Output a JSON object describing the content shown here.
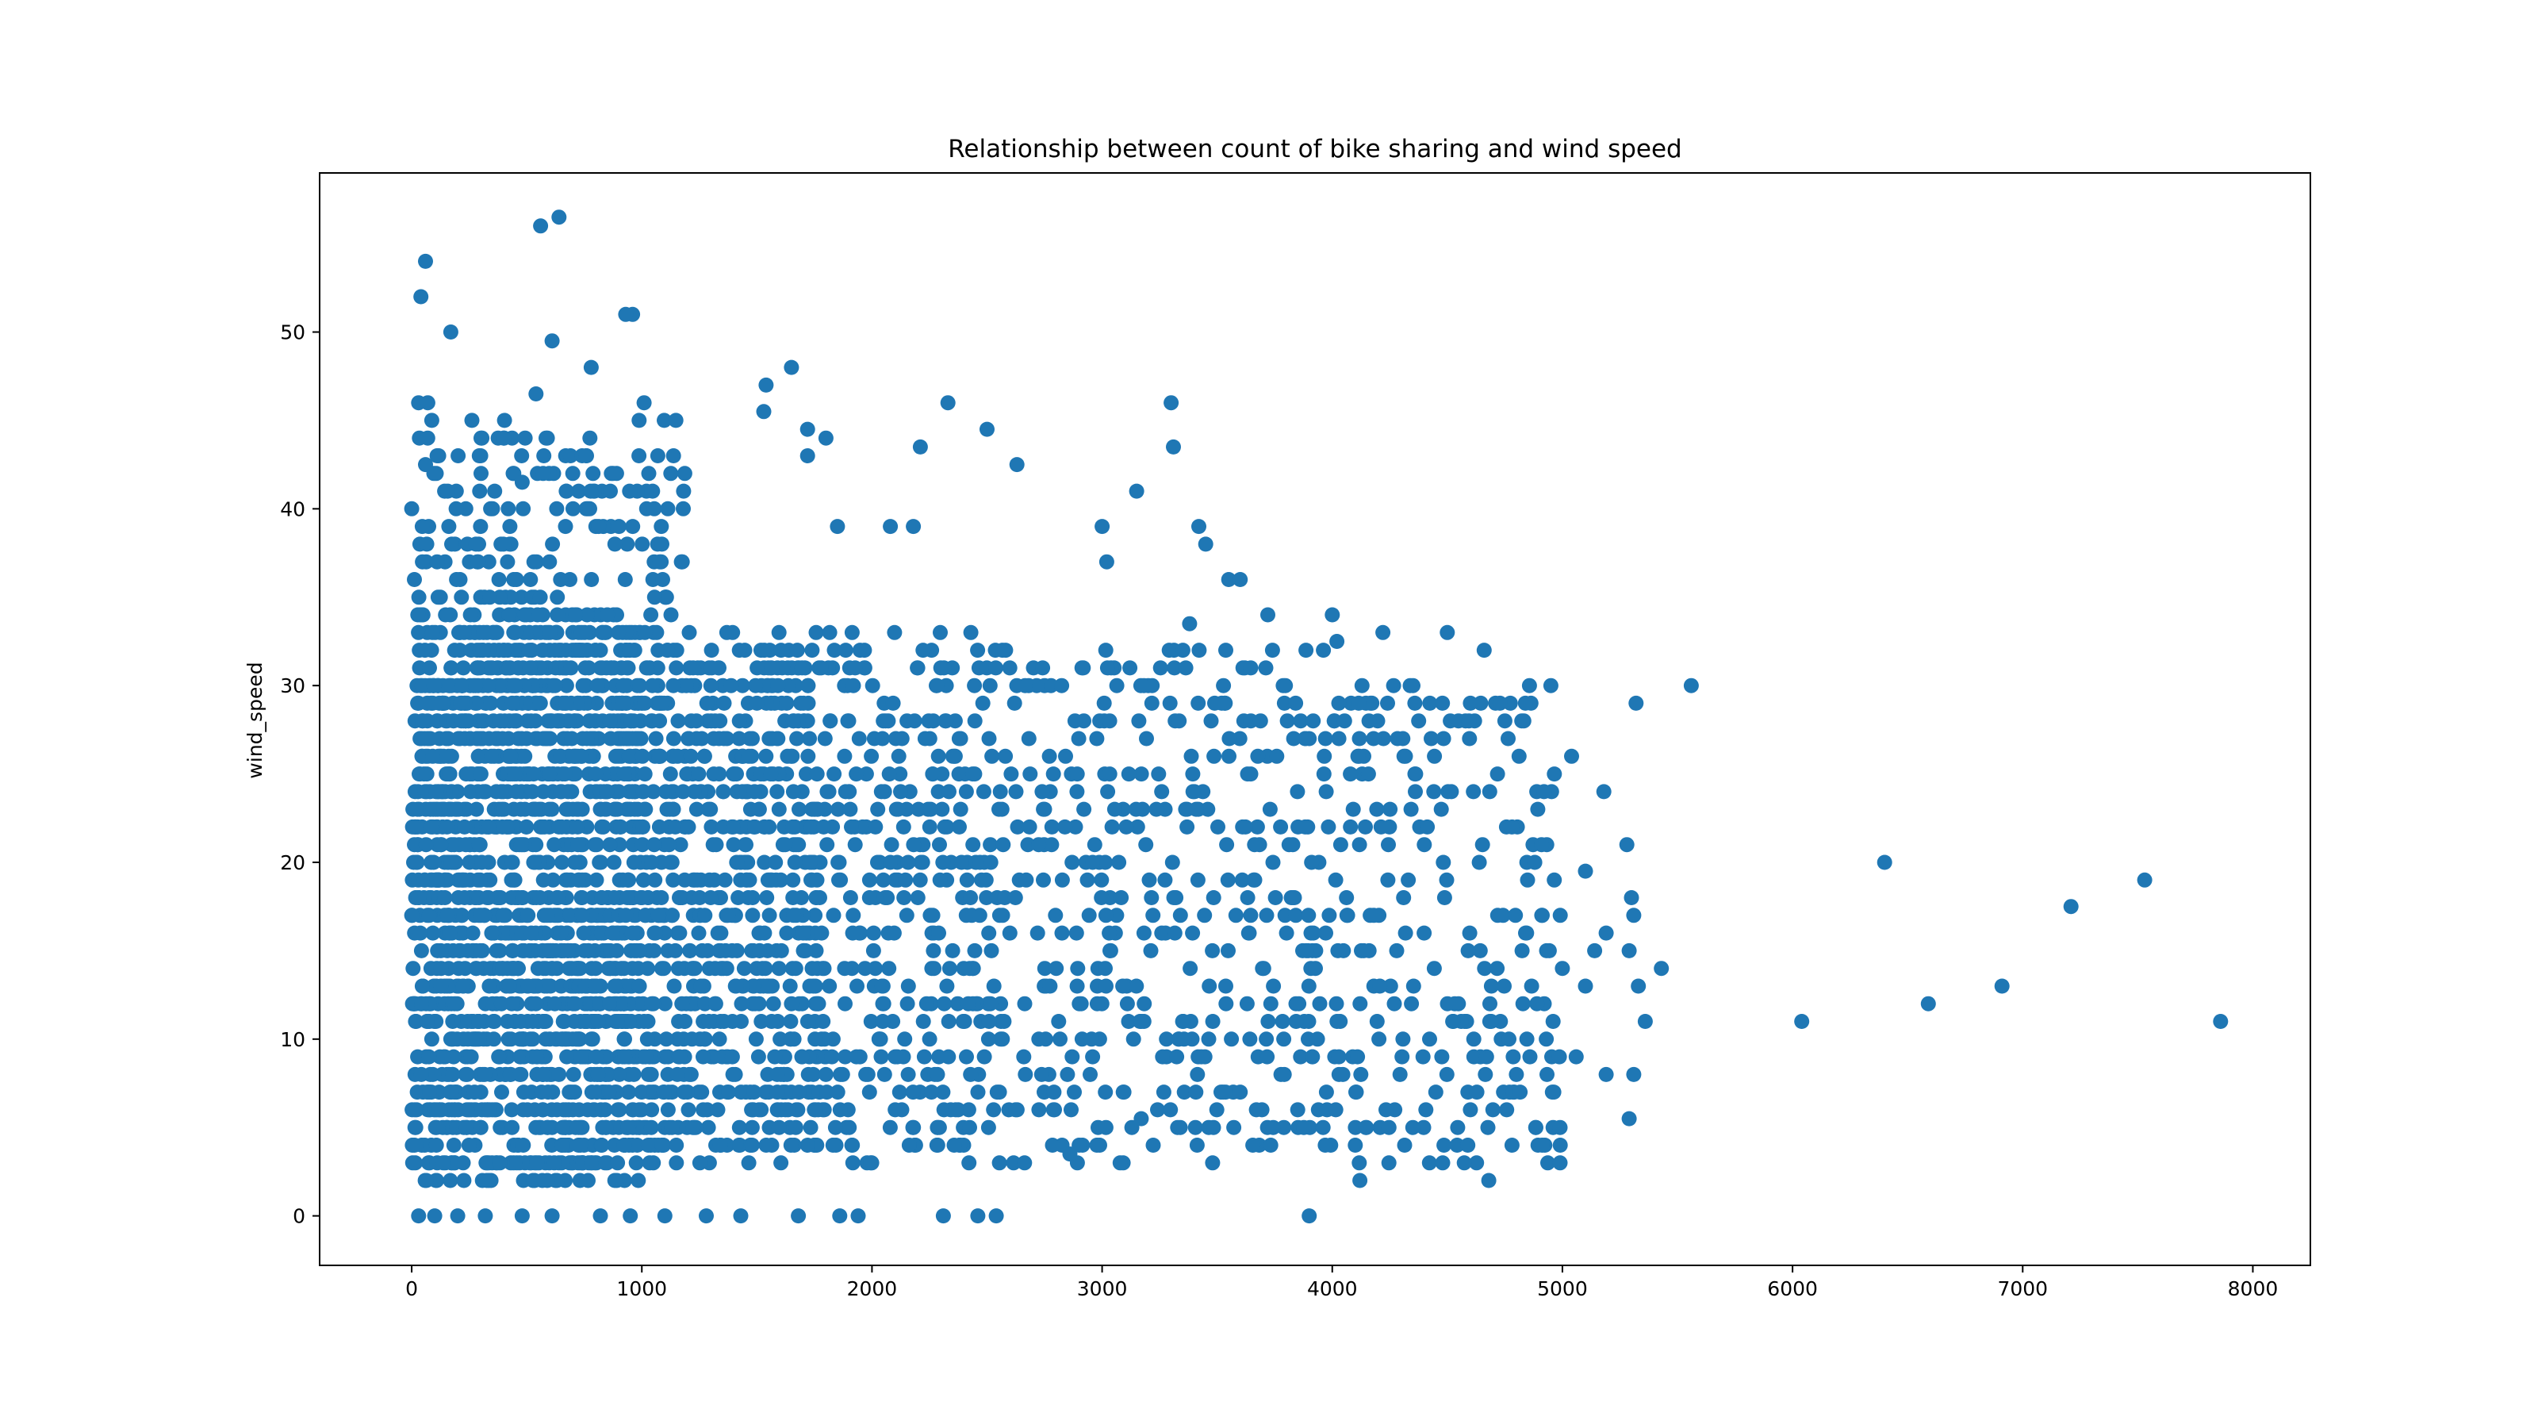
{
  "chart_data": {
    "type": "scatter",
    "title": "Relationship between count of bike sharing and wind speed",
    "xlabel": "",
    "ylabel": "wind_speed",
    "xlim": [
      -400,
      8250
    ],
    "ylim": [
      -2.8,
      59
    ],
    "xticks": [
      0,
      1000,
      2000,
      3000,
      4000,
      5000,
      6000,
      7000,
      8000
    ],
    "yticks": [
      0,
      10,
      20,
      30,
      40,
      50
    ],
    "grid": false,
    "legend": "none",
    "color": "#1f77b4",
    "series": [
      {
        "values": [
          [
            60,
            54
          ],
          [
            40,
            52
          ],
          [
            560,
            56
          ],
          [
            640,
            56.5
          ],
          [
            170,
            50
          ],
          [
            960,
            51
          ],
          [
            930,
            51
          ],
          [
            610,
            49.5
          ],
          [
            780,
            48
          ],
          [
            1650,
            48
          ],
          [
            1540,
            47
          ],
          [
            1010,
            46
          ],
          [
            2330,
            46
          ],
          [
            3300,
            46
          ],
          [
            30,
            46
          ],
          [
            70,
            46
          ],
          [
            540,
            46.5
          ],
          [
            1530,
            45.5
          ],
          [
            1720,
            44.5
          ],
          [
            2500,
            44.5
          ],
          [
            2210,
            43.5
          ],
          [
            3310,
            43.5
          ],
          [
            2630,
            42.5
          ],
          [
            1720,
            43
          ],
          [
            60,
            42.5
          ],
          [
            1800,
            44
          ],
          [
            400,
            44
          ],
          [
            300,
            43
          ],
          [
            480,
            41.5
          ],
          [
            700,
            42
          ],
          [
            3150,
            41
          ],
          [
            1850,
            39
          ],
          [
            2080,
            39
          ],
          [
            2180,
            39
          ],
          [
            3000,
            39
          ],
          [
            3420,
            39
          ],
          [
            3020,
            37
          ],
          [
            3550,
            36
          ],
          [
            3600,
            36
          ],
          [
            3450,
            38
          ],
          [
            3380,
            33.5
          ],
          [
            3720,
            34
          ],
          [
            4000,
            34
          ],
          [
            4220,
            33
          ],
          [
            4500,
            33
          ],
          [
            4660,
            32
          ],
          [
            4020,
            32.5
          ],
          [
            4950,
            30
          ],
          [
            5560,
            30
          ],
          [
            5320,
            29
          ],
          [
            5040,
            26
          ],
          [
            5180,
            24
          ],
          [
            4920,
            24
          ],
          [
            5100,
            19.5
          ],
          [
            5280,
            21
          ],
          [
            5300,
            18
          ],
          [
            5310,
            17
          ],
          [
            5290,
            15
          ],
          [
            5330,
            13
          ],
          [
            5360,
            11
          ],
          [
            5190,
            16
          ],
          [
            5140,
            15
          ],
          [
            5000,
            14
          ],
          [
            5430,
            14
          ],
          [
            5100,
            13
          ],
          [
            5060,
            9
          ],
          [
            5190,
            8
          ],
          [
            5310,
            8
          ],
          [
            5290,
            5.5
          ],
          [
            4990,
            5
          ],
          [
            4990,
            3
          ],
          [
            4680,
            2
          ],
          [
            4120,
            2
          ],
          [
            4480,
            3
          ],
          [
            3480,
            3
          ],
          [
            3900,
            0
          ],
          [
            2310,
            0
          ],
          [
            2460,
            0
          ],
          [
            2540,
            0
          ],
          [
            1680,
            0
          ],
          [
            1860,
            0
          ],
          [
            1940,
            0
          ],
          [
            1430,
            0
          ],
          [
            1280,
            0
          ],
          [
            1100,
            0
          ],
          [
            950,
            0
          ],
          [
            820,
            0
          ],
          [
            610,
            0
          ],
          [
            480,
            0
          ],
          [
            320,
            0
          ],
          [
            200,
            0
          ],
          [
            100,
            0
          ],
          [
            30,
            0
          ],
          [
            6040,
            11
          ],
          [
            6400,
            20
          ],
          [
            6590,
            12
          ],
          [
            6910,
            13
          ],
          [
            7210,
            17.5
          ],
          [
            7530,
            19
          ],
          [
            7860,
            11
          ],
          [
            2860,
            3.5
          ],
          [
            3170,
            5.5
          ],
          [
            3600,
            7
          ],
          [
            3850,
            6
          ],
          [
            4100,
            4
          ],
          [
            4350,
            5
          ],
          [
            4600,
            6
          ],
          [
            4800,
            8
          ],
          [
            4840,
            16
          ],
          [
            4880,
            20
          ],
          [
            4750,
            28
          ],
          [
            4600,
            29
          ],
          [
            4430,
            27
          ],
          [
            4400,
            21
          ],
          [
            4310,
            18
          ]
        ]
      }
    ],
    "density_regions": [
      {
        "x_range": [
          0,
          1000
        ],
        "y_range": [
          2,
          34
        ],
        "n": 1150
      },
      {
        "x_range": [
          0,
          1800
        ],
        "y_range": [
          4,
          32
        ],
        "n": 700
      },
      {
        "x_range": [
          1000,
          2500
        ],
        "y_range": [
          3,
          33
        ],
        "n": 650
      },
      {
        "x_range": [
          2500,
          4000
        ],
        "y_range": [
          3,
          32
        ],
        "n": 420
      },
      {
        "x_range": [
          4000,
          5000
        ],
        "y_range": [
          3,
          30
        ],
        "n": 230
      },
      {
        "x_range": [
          0,
          1200
        ],
        "y_range": [
          32,
          45
        ],
        "n": 200
      }
    ]
  }
}
